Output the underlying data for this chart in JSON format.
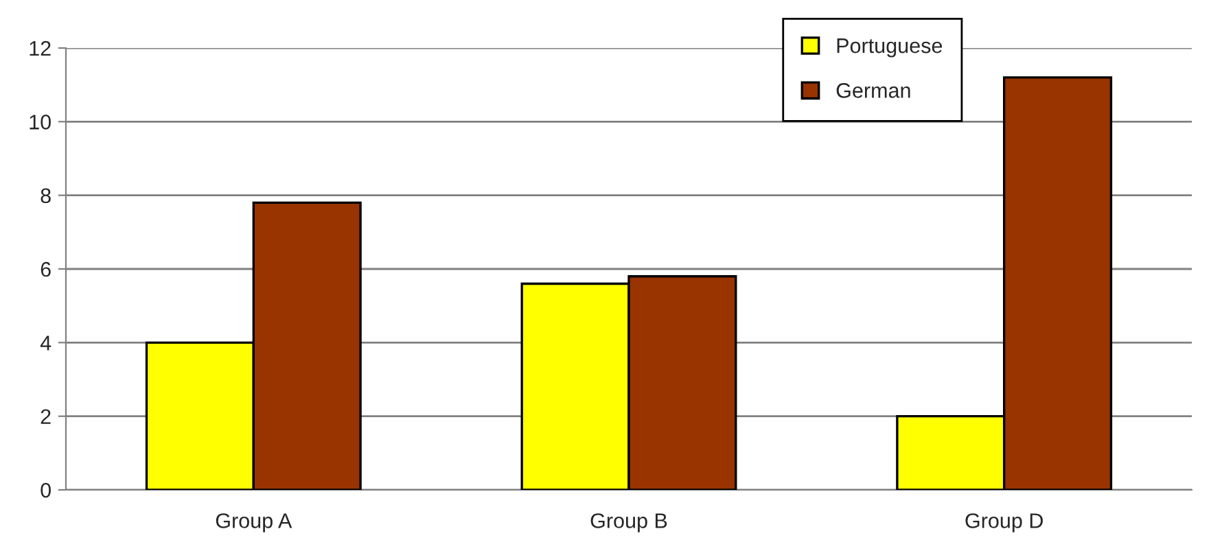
{
  "chart_data": {
    "type": "bar",
    "categories": [
      "Group A",
      "Group B",
      "Group D"
    ],
    "series": [
      {
        "name": "Portuguese",
        "color": "#ffff00",
        "values": [
          4,
          5.6,
          2
        ]
      },
      {
        "name": "German",
        "color": "#993300",
        "values": [
          7.8,
          5.8,
          11.2
        ]
      }
    ],
    "ylim": [
      0,
      12
    ],
    "yticks": [
      0,
      2,
      4,
      6,
      8,
      10,
      12
    ],
    "grid": "y",
    "legend": "top right"
  }
}
